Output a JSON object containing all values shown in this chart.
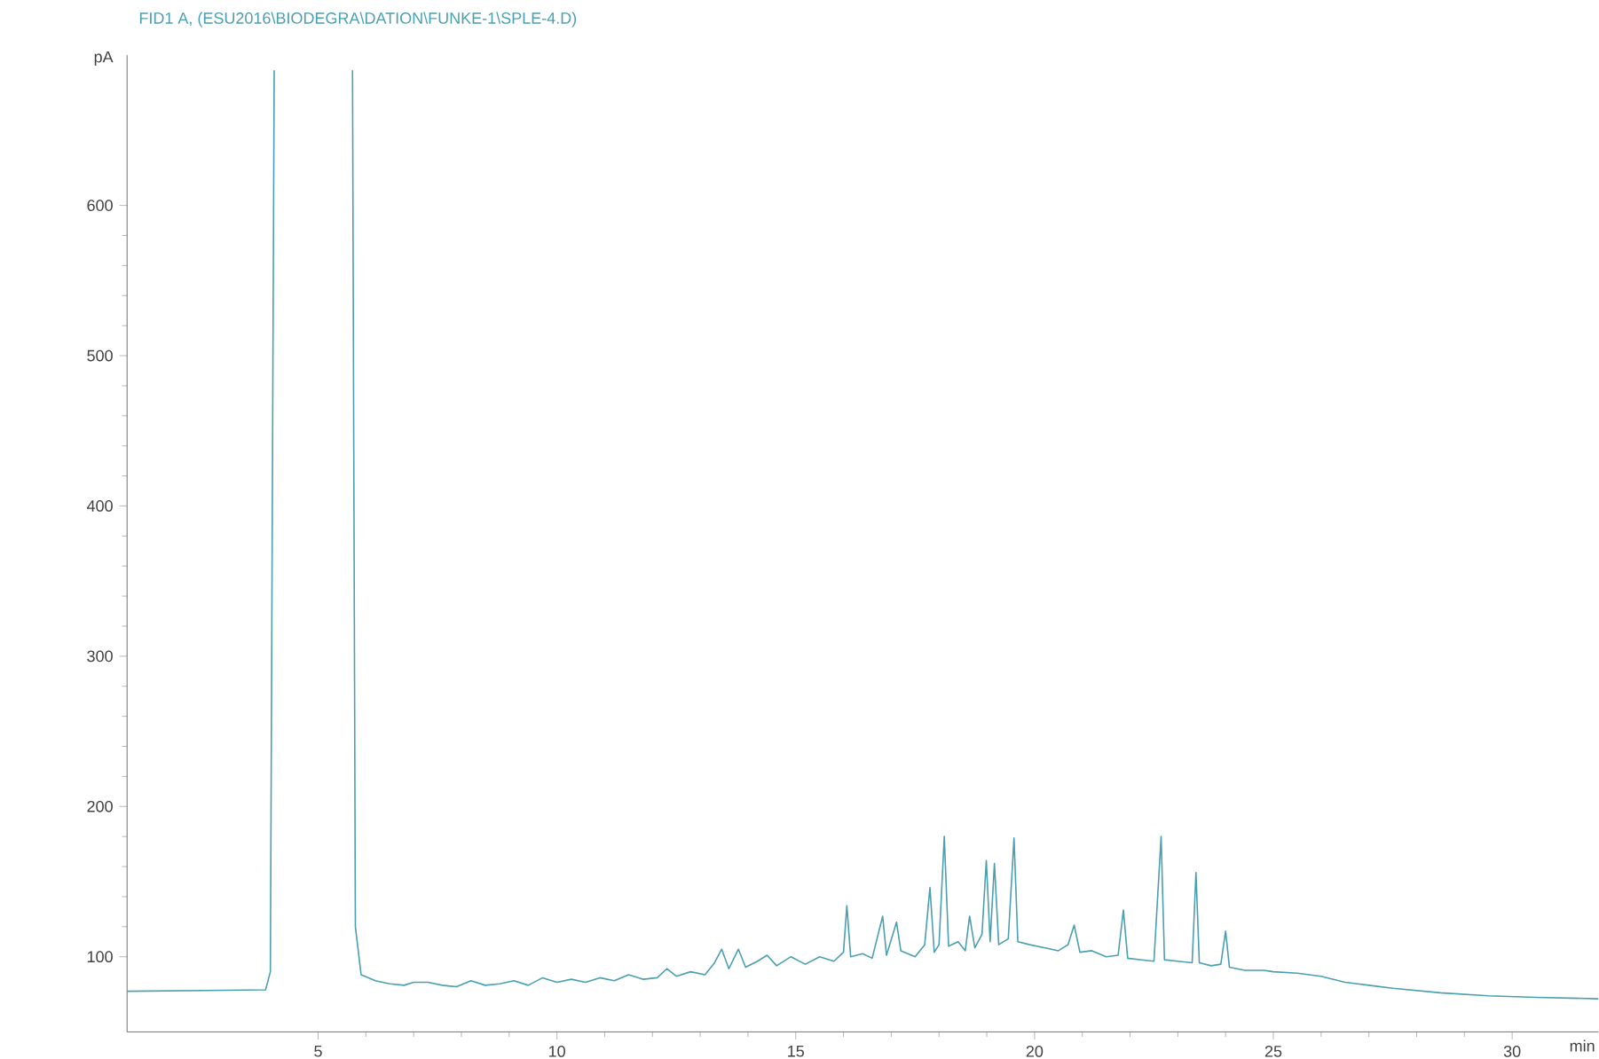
{
  "chart_data": {
    "type": "line",
    "title": "FID1 A, (ESU2016\\BIODEGRA\\DATION\\FUNKE-1\\SPLE-4.D)",
    "xlabel": "min",
    "ylabel": "pA",
    "color": "#4a9fb0",
    "x": [
      1,
      3.9,
      4.0,
      4.08,
      4.1,
      5.7,
      5.72,
      5.78,
      5.9,
      6.2,
      6.5,
      6.8,
      7.0,
      7.3,
      7.6,
      7.9,
      8.2,
      8.5,
      8.8,
      9.1,
      9.4,
      9.7,
      10.0,
      10.3,
      10.6,
      10.9,
      11.2,
      11.5,
      11.8,
      12.1,
      12.3,
      12.5,
      12.8,
      13.1,
      13.3,
      13.45,
      13.6,
      13.8,
      13.95,
      14.2,
      14.4,
      14.6,
      14.9,
      15.2,
      15.5,
      15.8,
      16.0,
      16.07,
      16.15,
      16.4,
      16.6,
      16.82,
      16.9,
      17.11,
      17.2,
      17.5,
      17.7,
      17.81,
      17.9,
      18.0,
      18.11,
      18.2,
      18.4,
      18.55,
      18.64,
      18.75,
      18.9,
      18.99,
      19.07,
      19.16,
      19.25,
      19.45,
      19.57,
      19.65,
      19.9,
      20.2,
      20.5,
      20.7,
      20.83,
      20.95,
      21.2,
      21.5,
      21.75,
      21.86,
      21.95,
      22.2,
      22.5,
      22.65,
      22.72,
      23.0,
      23.3,
      23.38,
      23.45,
      23.7,
      23.9,
      24.0,
      24.08,
      24.4,
      24.8,
      25.0,
      25.5,
      26.0,
      26.5,
      27.0,
      27.5,
      28.5,
      29.5,
      30.5,
      31.8
    ],
    "values": [
      77,
      78,
      90,
      690,
      null,
      null,
      690,
      120,
      88,
      84,
      82,
      81,
      83,
      83,
      81,
      80,
      84,
      81,
      82,
      84,
      81,
      86,
      83,
      85,
      83,
      86,
      84,
      88,
      85,
      86,
      92,
      87,
      90,
      88,
      96,
      105,
      92,
      105,
      93,
      97,
      101,
      94,
      100,
      95,
      100,
      97,
      103,
      134,
      100,
      102,
      99,
      127,
      101,
      123,
      104,
      100,
      108,
      146,
      103,
      108,
      180,
      107,
      110,
      104,
      127,
      106,
      115,
      164,
      110,
      162,
      108,
      112,
      179,
      110,
      108,
      106,
      104,
      108,
      121,
      103,
      104,
      100,
      101,
      131,
      99,
      98,
      97,
      180,
      98,
      97,
      96,
      156,
      96,
      94,
      95,
      117,
      93,
      91,
      91,
      90,
      89,
      87,
      83,
      81,
      79,
      76,
      74,
      73,
      72
    ],
    "xlim": [
      1,
      31.8
    ],
    "ylim": [
      50,
      700
    ],
    "xticks": [
      5,
      10,
      15,
      20,
      25,
      30
    ],
    "yticks": [
      100,
      200,
      300,
      400,
      500,
      600
    ]
  }
}
